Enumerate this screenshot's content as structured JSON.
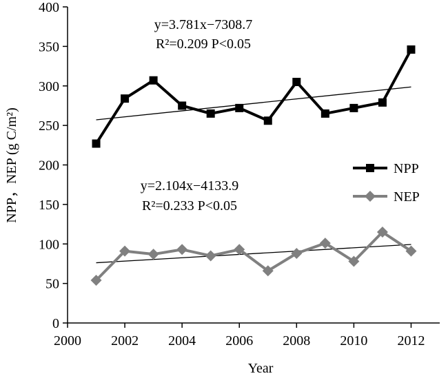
{
  "chart_data": {
    "type": "line",
    "title": "",
    "xlabel": "Year",
    "ylabel": "NPP，NEP (g C/m²)",
    "xlim": [
      2000,
      2013
    ],
    "ylim": [
      0,
      400
    ],
    "x_ticks": [
      2000,
      2002,
      2004,
      2006,
      2008,
      2010,
      2012
    ],
    "y_ticks": [
      0,
      50,
      100,
      150,
      200,
      250,
      300,
      350,
      400
    ],
    "grid": false,
    "legend_position": "right-middle",
    "x": [
      2001,
      2002,
      2003,
      2004,
      2005,
      2006,
      2007,
      2008,
      2009,
      2010,
      2011,
      2012
    ],
    "series": [
      {
        "name": "NPP",
        "color": "#000000",
        "marker": "square",
        "values": [
          227,
          284,
          307,
          275,
          265,
          272,
          256,
          305,
          265,
          272,
          279,
          346
        ],
        "trend": {
          "slope": 3.781,
          "intercept": -7308.7
        }
      },
      {
        "name": "NEP",
        "color": "#808080",
        "marker": "diamond",
        "values": [
          54,
          91,
          87,
          93,
          85,
          93,
          66,
          88,
          101,
          78,
          115,
          91
        ],
        "trend": {
          "slope": 2.104,
          "intercept": -4133.9
        }
      }
    ],
    "annotations": [
      {
        "eq": "y=3.781x−7308.7",
        "stats": "R²=0.209  P<0.05"
      },
      {
        "eq": "y=2.104x−4133.9",
        "stats": "R²=0.233 P<0.05"
      }
    ]
  }
}
